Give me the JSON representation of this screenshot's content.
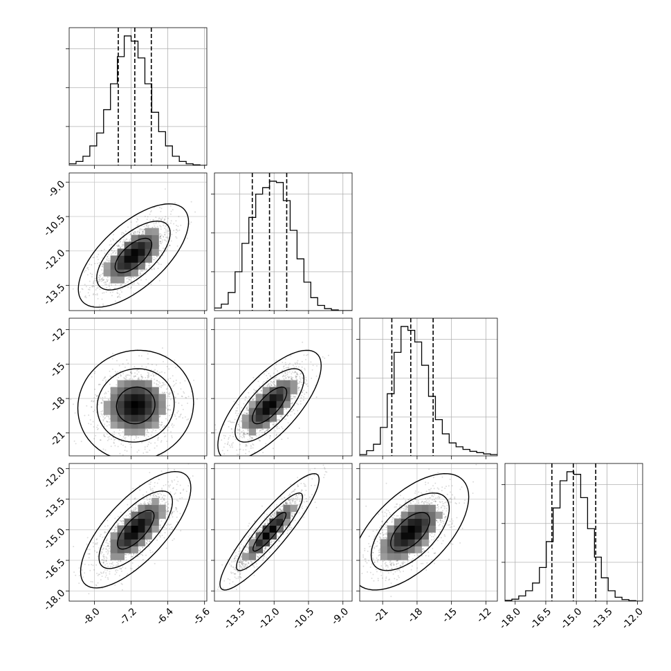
{
  "chart_data": {
    "type": "corner",
    "title": "",
    "parameters": [
      {
        "range": [
          -8.55,
          -5.55
        ],
        "ticks": [
          "-8.0",
          "-7.2",
          "-6.4",
          "-5.6"
        ],
        "tick_values": [
          -8.0,
          -7.2,
          -6.4,
          -5.6
        ],
        "quantiles": [
          -7.48,
          -7.12,
          -6.76
        ],
        "histogram": [
          0.012,
          0.03,
          0.07,
          0.15,
          0.25,
          0.43,
          0.63,
          0.84,
          1.0,
          0.96,
          0.83,
          0.63,
          0.41,
          0.26,
          0.15,
          0.07,
          0.03,
          0.012,
          0.004,
          0.0
        ]
      },
      {
        "range": [
          -14.6,
          -8.6
        ],
        "ticks": [
          "-13.5",
          "-12.0",
          "-10.5",
          "-9.0"
        ],
        "tick_values": [
          -13.5,
          -12.0,
          -10.5,
          -9.0
        ],
        "quantiles": [
          -12.95,
          -12.2,
          -11.45
        ],
        "histogram": [
          0.02,
          0.05,
          0.14,
          0.3,
          0.52,
          0.72,
          0.9,
          0.95,
          1.0,
          0.99,
          0.85,
          0.62,
          0.4,
          0.22,
          0.1,
          0.04,
          0.015,
          0.005,
          0.0,
          0.0
        ]
      },
      {
        "range": [
          -23.0,
          -11.0
        ],
        "ticks": [
          "-21",
          "-18",
          "-15",
          "-12"
        ],
        "tick_values": [
          -21,
          -18,
          -15,
          -12
        ],
        "quantiles": [
          -20.2,
          -18.55,
          -16.6
        ],
        "histogram": [
          0.01,
          0.04,
          0.09,
          0.22,
          0.48,
          0.8,
          1.0,
          0.97,
          0.88,
          0.7,
          0.46,
          0.28,
          0.17,
          0.1,
          0.07,
          0.05,
          0.035,
          0.025,
          0.015,
          0.01
        ]
      },
      {
        "range": [
          -18.5,
          -11.75
        ],
        "ticks": [
          "-18.0",
          "-16.5",
          "-15.0",
          "-13.5",
          "-12.0"
        ],
        "tick_values": [
          -18.0,
          -16.5,
          -15.0,
          -13.5,
          -12.0
        ],
        "quantiles": [
          -16.2,
          -15.15,
          -14.05
        ],
        "histogram": [
          0.006,
          0.015,
          0.04,
          0.08,
          0.14,
          0.26,
          0.46,
          0.72,
          0.93,
          1.0,
          0.98,
          0.8,
          0.56,
          0.34,
          0.18,
          0.08,
          0.03,
          0.012,
          0.004,
          0.0
        ]
      }
    ],
    "pairs": [
      {
        "row": 1,
        "col": 0,
        "mean": [
          -7.15,
          -12.2
        ],
        "sd": [
          0.4,
          0.75
        ],
        "rho": 0.65
      },
      {
        "row": 2,
        "col": 0,
        "mean": [
          -7.1,
          -18.6
        ],
        "sd": [
          0.42,
          1.6
        ],
        "rho": 0.05
      },
      {
        "row": 2,
        "col": 1,
        "mean": [
          -12.2,
          -18.6
        ],
        "sd": [
          0.75,
          1.6
        ],
        "rho": 0.72
      },
      {
        "row": 3,
        "col": 0,
        "mean": [
          -7.1,
          -15.0
        ],
        "sd": [
          0.4,
          0.95
        ],
        "rho": 0.72
      },
      {
        "row": 3,
        "col": 1,
        "mean": [
          -12.2,
          -15.1
        ],
        "sd": [
          0.72,
          0.95
        ],
        "rho": 0.9
      },
      {
        "row": 3,
        "col": 2,
        "mean": [
          -18.6,
          -15.1
        ],
        "sd": [
          1.7,
          0.95
        ],
        "rho": 0.6
      }
    ],
    "contour_levels": [
      0.393,
      0.865,
      0.989
    ],
    "xlabel": "",
    "ylabel": "",
    "grid": true
  }
}
